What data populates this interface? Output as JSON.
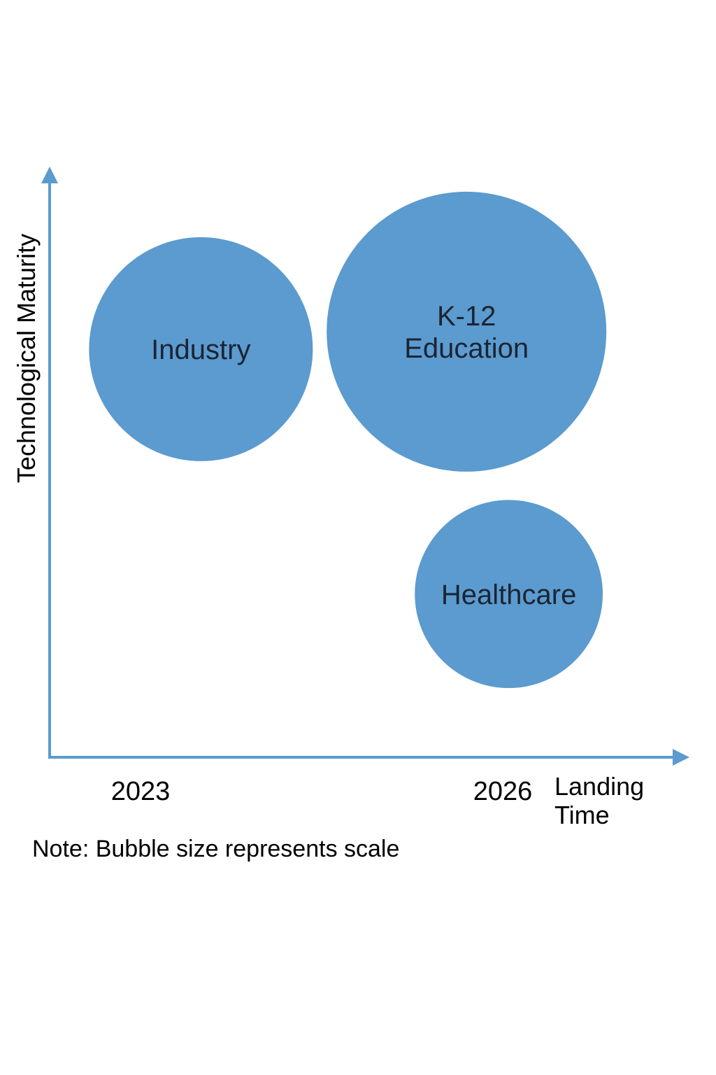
{
  "chart_data": {
    "type": "scatter",
    "title": "",
    "xlabel": "Landing Time",
    "ylabel": "Technological Maturity",
    "x_ticks": [
      2023,
      2026
    ],
    "grid": false,
    "legend": "none",
    "series": [
      {
        "points": [
          {
            "label": "Industry",
            "label_lines": [
              "Industry"
            ],
            "x": 2023.5,
            "y": 7.0,
            "size": 100
          },
          {
            "label": "K-12 Education",
            "label_lines": [
              "K-12",
              "Education"
            ],
            "x": 2025.7,
            "y": 7.3,
            "size": 125
          },
          {
            "label": "Healthcare",
            "label_lines": [
              "Healthcare"
            ],
            "x": 2026.05,
            "y": 2.8,
            "size": 84
          }
        ]
      }
    ],
    "note": "Note: Bubble size represents scale"
  },
  "colors": {
    "bubble": "#5b9bcf",
    "axis": "#5b9bcf",
    "label": "#1b2433"
  }
}
